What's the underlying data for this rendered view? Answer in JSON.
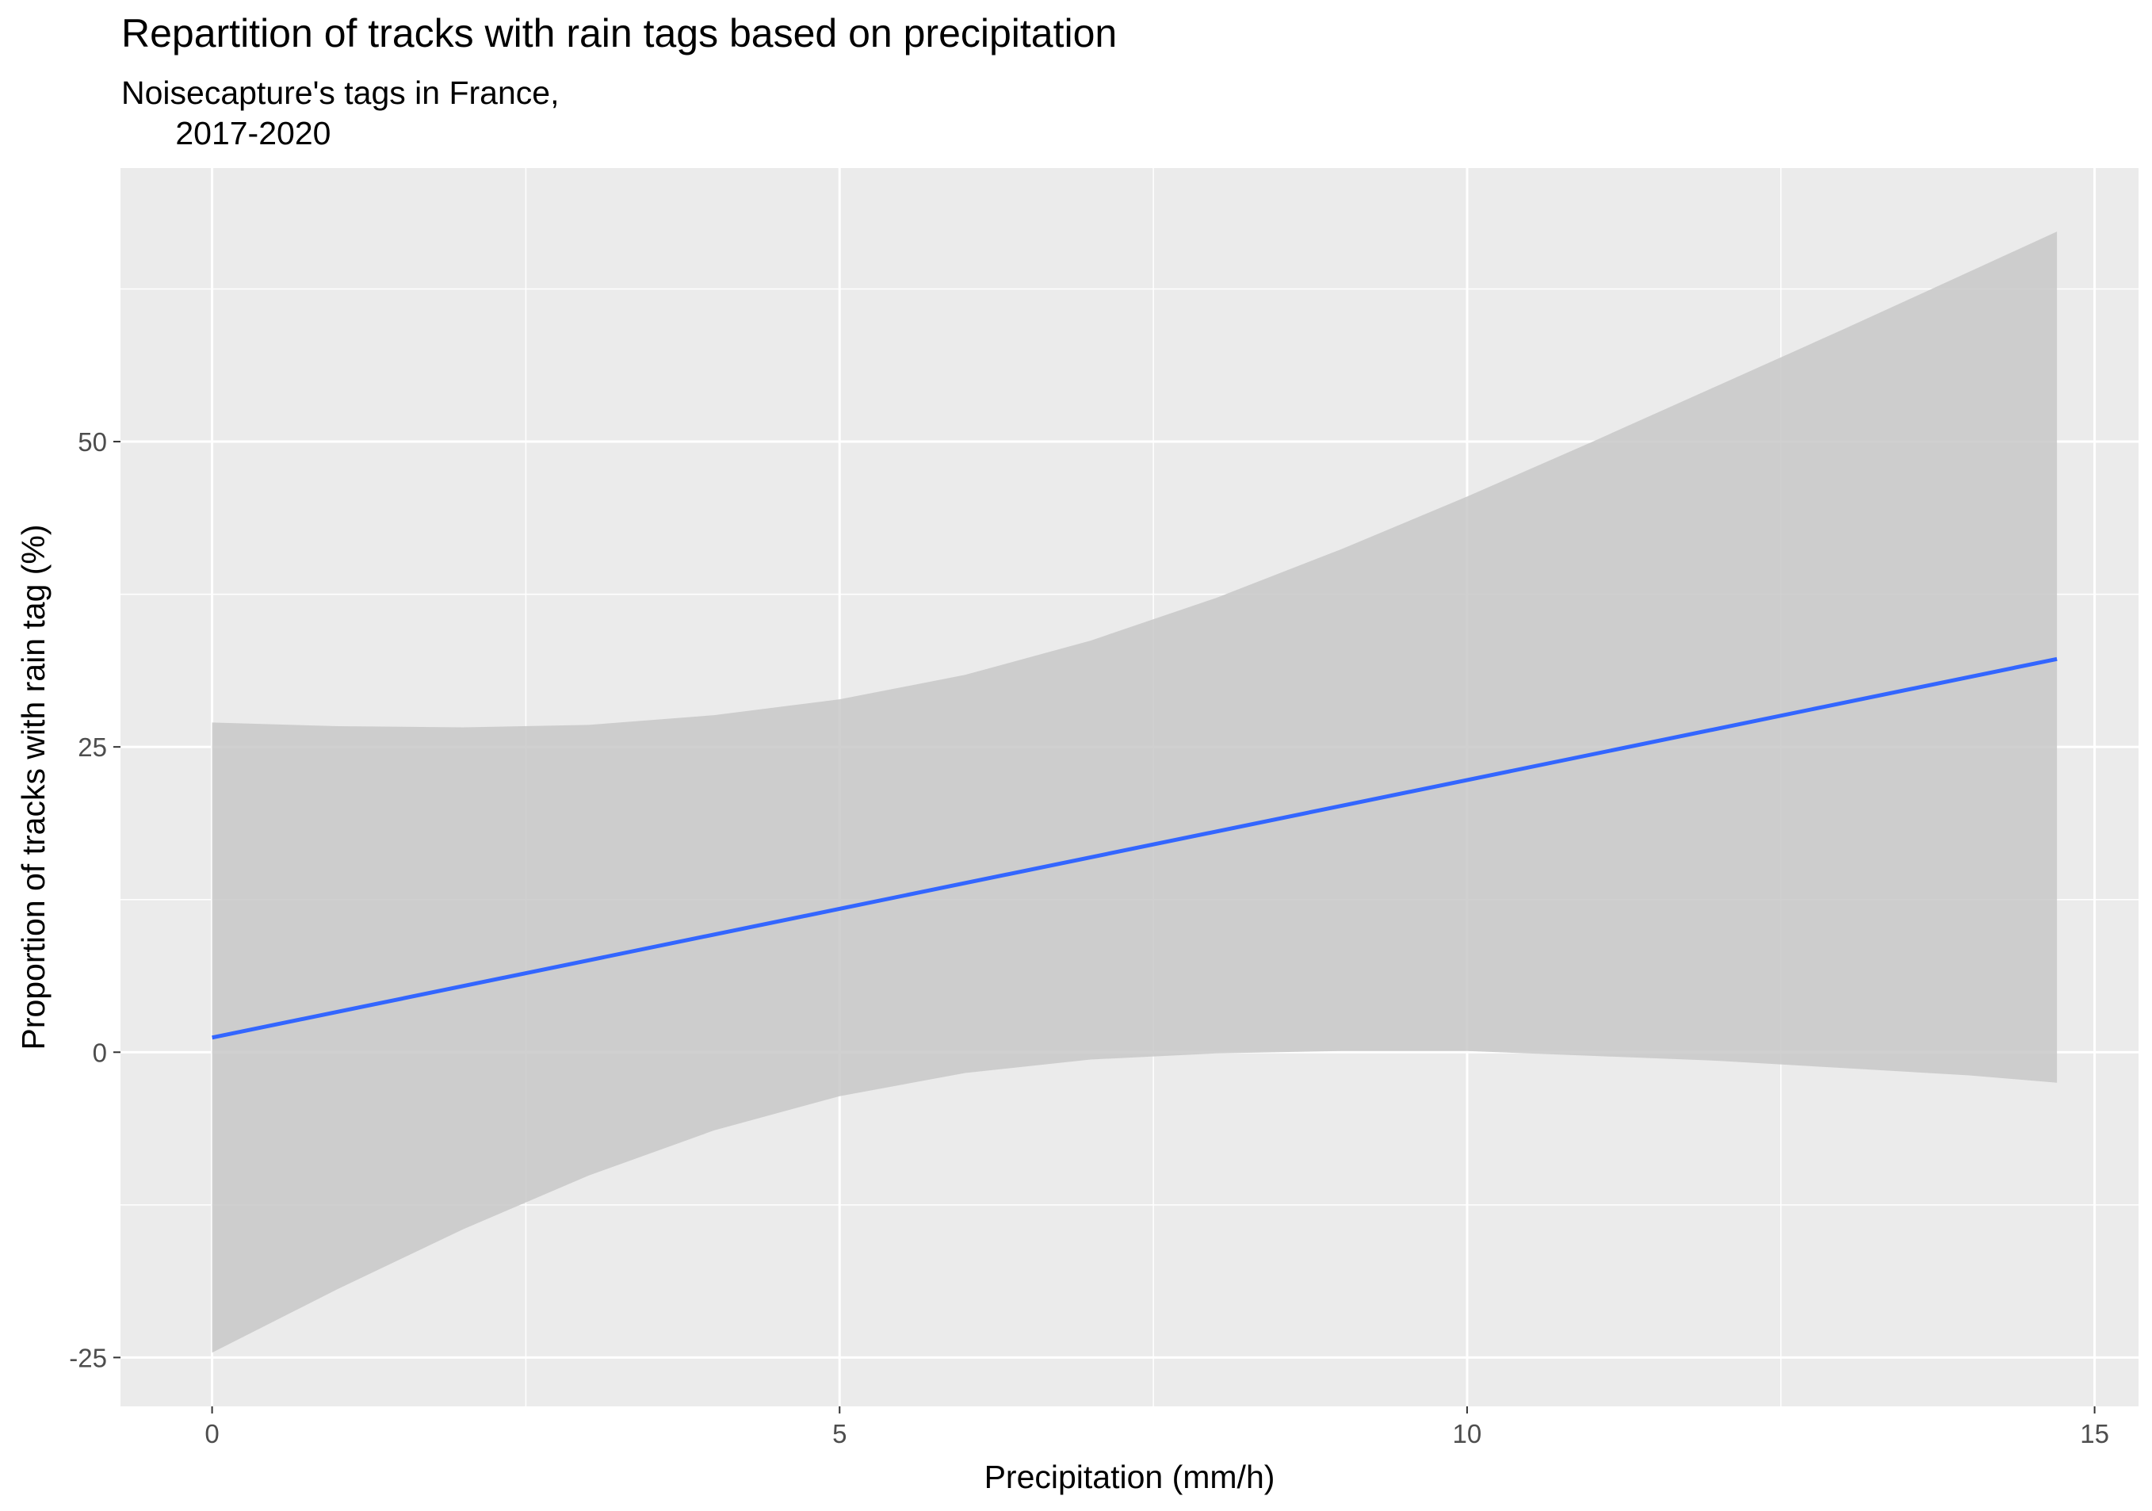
{
  "chart_data": {
    "type": "line",
    "title": "Repartition of tracks with rain tags based on precipitation",
    "subtitle": "Noisecapture's tags in France,\n      2017-2020",
    "xlabel": "Precipitation (mm/h)",
    "ylabel": "Proportion of tracks with rain tag (%)",
    "xlim": [
      -0.73,
      15.35
    ],
    "ylim": [
      -29,
      72.4
    ],
    "x_ticks": [
      0,
      5,
      10,
      15
    ],
    "y_ticks": [
      -25,
      0,
      25,
      50
    ],
    "grid": true,
    "legend": "none",
    "colors": {
      "panel_background": "#ebebeb",
      "grid_line": "#ffffff",
      "ribbon": "#c8c8c8",
      "line": "#3366ff",
      "tick": "#4d4d4d"
    },
    "series": [
      {
        "type": "line",
        "x": [
          0,
          14.7
        ],
        "y": [
          1.2,
          32.2
        ]
      },
      {
        "type": "ribbon",
        "x": [
          0,
          1,
          2,
          3,
          4,
          5,
          6,
          7,
          8,
          9,
          10,
          11,
          12,
          13,
          14,
          14.7
        ],
        "upper": [
          27.0,
          26.7,
          26.6,
          26.8,
          27.6,
          28.9,
          30.9,
          33.7,
          37.2,
          41.2,
          45.5,
          50.0,
          54.6,
          59.2,
          63.9,
          67.2
        ],
        "lower": [
          -24.6,
          -19.4,
          -14.5,
          -10.1,
          -6.4,
          -3.6,
          -1.7,
          -0.6,
          -0.1,
          0.1,
          0.1,
          -0.3,
          -0.7,
          -1.3,
          -1.9,
          -2.5
        ]
      }
    ]
  }
}
